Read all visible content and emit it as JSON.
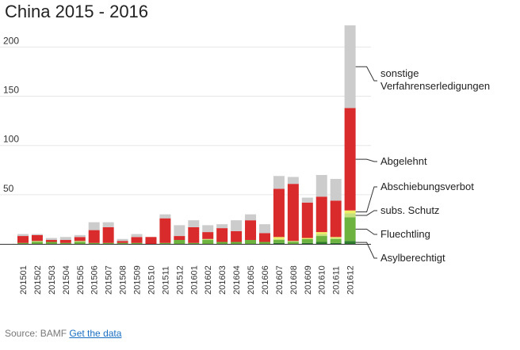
{
  "chart_data": {
    "type": "bar",
    "stacked": true,
    "title": "China 2015 - 2016",
    "categories": [
      "201501",
      "201502",
      "201503",
      "201504",
      "201505",
      "201506",
      "201507",
      "201508",
      "201509",
      "201510",
      "201511",
      "201512",
      "201601",
      "201602",
      "201603",
      "201604",
      "201605",
      "201606",
      "201607",
      "201608",
      "201609",
      "201610",
      "201611",
      "201612"
    ],
    "yticks": [
      50,
      100,
      150,
      200
    ],
    "ylim": [
      0,
      230
    ],
    "grid": "horizontal",
    "series": [
      {
        "name": "Asylberechtigt",
        "color": "#2e7d2e",
        "values": [
          0,
          0,
          0,
          0,
          0,
          0,
          0,
          0,
          0,
          0,
          0,
          0,
          0,
          0,
          0,
          0,
          0,
          0,
          1,
          0,
          1,
          2,
          1,
          3
        ]
      },
      {
        "name": "Fluechtling",
        "color": "#6db33f",
        "values": [
          1,
          2,
          2,
          1,
          2,
          1,
          1,
          1,
          1,
          0,
          1,
          4,
          1,
          4,
          2,
          2,
          4,
          2,
          3,
          2,
          4,
          6,
          4,
          24
        ]
      },
      {
        "name": "subs. Schutz",
        "color": "#c3e07a",
        "values": [
          0,
          1,
          0,
          0,
          1,
          0,
          0,
          0,
          0,
          0,
          0,
          0,
          0,
          1,
          0,
          0,
          0,
          0,
          1,
          1,
          0,
          2,
          1,
          4
        ]
      },
      {
        "name": "Abschiebungsverbot",
        "color": "#eeee66",
        "values": [
          0,
          0,
          0,
          0,
          0,
          0,
          0,
          0,
          0,
          0,
          0,
          0,
          0,
          0,
          0,
          0,
          0,
          0,
          2,
          0,
          1,
          2,
          1,
          3
        ]
      },
      {
        "name": "Abgelehnt",
        "color": "#d92b2b",
        "values": [
          7,
          6,
          2,
          3,
          4,
          13,
          16,
          2,
          6,
          7,
          25,
          4,
          16,
          7,
          14,
          11,
          20,
          9,
          49,
          58,
          36,
          36,
          37,
          104
        ]
      },
      {
        "name": "sonstige Verfahrenserledigungen",
        "color": "#cccccc",
        "values": [
          2,
          1,
          2,
          3,
          2,
          8,
          5,
          2,
          3,
          0,
          4,
          11,
          7,
          7,
          4,
          11,
          6,
          9,
          13,
          7,
          5,
          22,
          22,
          84
        ]
      }
    ]
  },
  "source": {
    "prefix": "Source: BAMF",
    "link_label": "Get the data"
  }
}
